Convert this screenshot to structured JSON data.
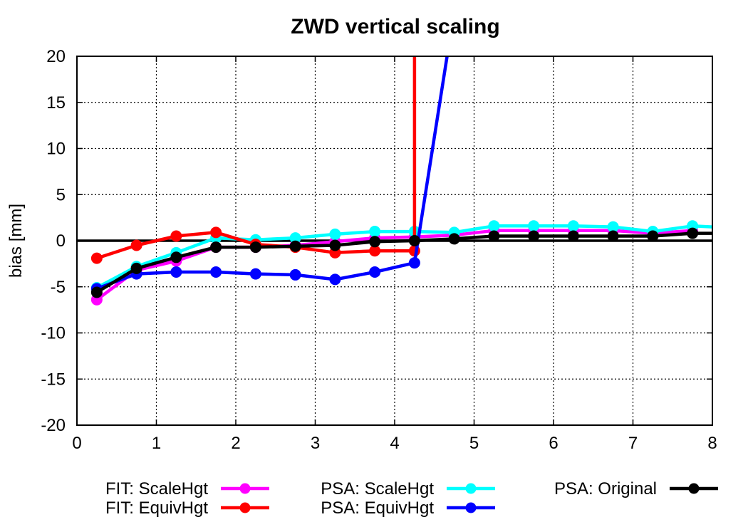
{
  "chart_data": {
    "type": "line",
    "title": "ZWD vertical scaling",
    "xlabel": "",
    "ylabel": "bias [mm]",
    "xlim": [
      0,
      8
    ],
    "ylim": [
      -20,
      20
    ],
    "xticks": [
      "0",
      "1",
      "2",
      "3",
      "4",
      "5",
      "6",
      "7",
      "8"
    ],
    "yticks": [
      "20",
      "15",
      "10",
      "5",
      "0",
      "-5",
      "-10",
      "-15",
      "-20"
    ],
    "grid": true,
    "legend_position": "bottom",
    "series": [
      {
        "name": "FIT: ScaleHgt",
        "color": "#ff00ff",
        "x": [
          0.25,
          0.75,
          1.25,
          1.75,
          2.25,
          2.75,
          3.25,
          3.75,
          4.25,
          4.75,
          5.25,
          5.75,
          6.25,
          6.75,
          7.25,
          7.75
        ],
        "y": [
          -6.4,
          -3.2,
          -2.2,
          -0.7,
          -0.7,
          -0.5,
          -0.1,
          0.3,
          0.4,
          0.6,
          1.1,
          1.1,
          1.1,
          1.1,
          0.8,
          1.1
        ]
      },
      {
        "name": "FIT: EquivHgt",
        "color": "#ff0000",
        "x": [
          0.25,
          0.75,
          1.25,
          1.75,
          2.25,
          2.75,
          3.25,
          3.75,
          4.25,
          4.25
        ],
        "y": [
          -1.9,
          -0.5,
          0.5,
          0.9,
          -0.4,
          -0.7,
          -1.3,
          -1.1,
          -1.1,
          20
        ],
        "markers": [
          true,
          true,
          true,
          true,
          true,
          true,
          true,
          true,
          true,
          false
        ]
      },
      {
        "name": "PSA: ScaleHgt",
        "color": "#00ffff",
        "x": [
          0.25,
          0.75,
          1.25,
          1.75,
          2.25,
          2.75,
          3.25,
          3.75,
          4.25,
          4.75,
          5.25,
          5.75,
          6.25,
          6.75,
          7.25,
          7.75,
          8.0
        ],
        "y": [
          -5.1,
          -2.8,
          -1.3,
          0.3,
          0.1,
          0.3,
          0.7,
          1.0,
          1.0,
          0.9,
          1.6,
          1.6,
          1.6,
          1.5,
          1.0,
          1.6,
          1.5
        ],
        "markers": [
          true,
          true,
          true,
          true,
          true,
          true,
          true,
          true,
          true,
          true,
          true,
          true,
          true,
          true,
          true,
          true,
          false
        ]
      },
      {
        "name": "PSA: EquivHgt",
        "color": "#0000ff",
        "x": [
          0.25,
          0.75,
          1.25,
          1.75,
          2.25,
          2.75,
          3.25,
          3.75,
          4.25,
          4.66
        ],
        "y": [
          -5.2,
          -3.6,
          -3.4,
          -3.4,
          -3.6,
          -3.7,
          -4.2,
          -3.4,
          -2.4,
          20
        ],
        "markers": [
          true,
          true,
          true,
          true,
          true,
          true,
          true,
          true,
          true,
          false
        ]
      },
      {
        "name": "PSA: Original",
        "color": "#000000",
        "x": [
          0.25,
          0.75,
          1.25,
          1.75,
          2.25,
          2.75,
          3.25,
          3.75,
          4.25,
          4.75,
          5.25,
          5.75,
          6.25,
          6.75,
          7.25,
          7.75,
          8.0
        ],
        "y": [
          -5.6,
          -3.0,
          -1.8,
          -0.7,
          -0.7,
          -0.6,
          -0.5,
          -0.1,
          0.0,
          0.2,
          0.5,
          0.5,
          0.5,
          0.5,
          0.5,
          0.8,
          0.8
        ],
        "markers": [
          true,
          true,
          true,
          true,
          true,
          true,
          true,
          true,
          true,
          true,
          true,
          true,
          true,
          true,
          true,
          true,
          false
        ]
      }
    ],
    "zero_line": true
  }
}
